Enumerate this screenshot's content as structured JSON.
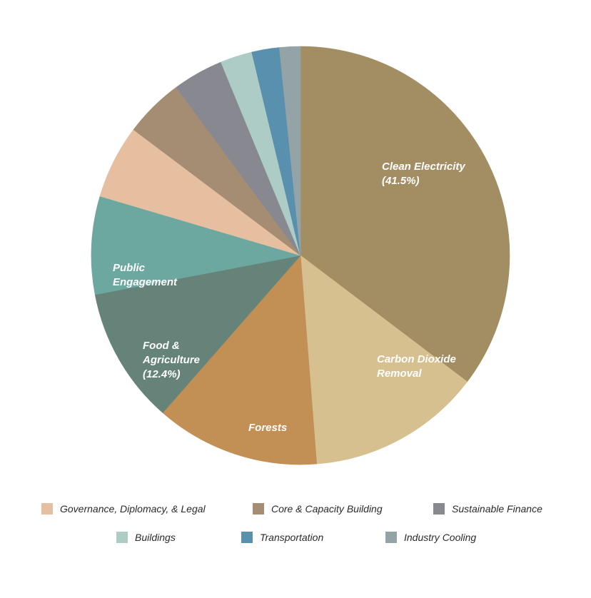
{
  "chart_data": {
    "type": "pie",
    "title": "",
    "slices": [
      {
        "name": "Clean Electricity",
        "value": 41.5,
        "label_lines": [
          "Clean Electricity",
          "(41.5%)"
        ],
        "color": "#A38E63"
      },
      {
        "name": "Carbon Dioxide Removal",
        "value": 15.8,
        "label_lines": [
          "Carbon Dioxide",
          "Removal"
        ],
        "color": "#D6C090"
      },
      {
        "name": "Forests",
        "value": 14.9,
        "label_lines": [
          "Forests"
        ],
        "color": "#C28F55"
      },
      {
        "name": "Food & Agriculture",
        "value": 12.4,
        "label_lines": [
          "Food &",
          "Agriculture",
          "(12.4%)"
        ],
        "color": "#66837A"
      },
      {
        "name": "Public Engagement",
        "value": 8.9,
        "label_lines": [
          "Public",
          "Engagement"
        ],
        "color": "#6CA7A0"
      },
      {
        "name": "Governance, Diplomacy, & Legal",
        "value": 6.7,
        "label_lines": [],
        "color": "#E6BFA1"
      },
      {
        "name": "Core & Capacity Building",
        "value": 5.4,
        "label_lines": [],
        "color": "#A58D74"
      },
      {
        "name": "Sustainable Finance",
        "value": 4.6,
        "label_lines": [],
        "color": "#888891"
      },
      {
        "name": "Buildings",
        "value": 2.9,
        "label_lines": [],
        "color": "#ADCCC6"
      },
      {
        "name": "Transportation",
        "value": 2.5,
        "label_lines": [],
        "color": "#5890AD"
      },
      {
        "name": "Industry Cooling",
        "value": 1.9,
        "label_lines": [],
        "color": "#93A3A6"
      }
    ],
    "legend": {
      "placement": "bottom",
      "entries": [
        "Governance, Diplomacy, & Legal",
        "Core & Capacity Building",
        "Sustainable Finance",
        "Buildings",
        "Transportation",
        "Industry Cooling"
      ]
    }
  }
}
